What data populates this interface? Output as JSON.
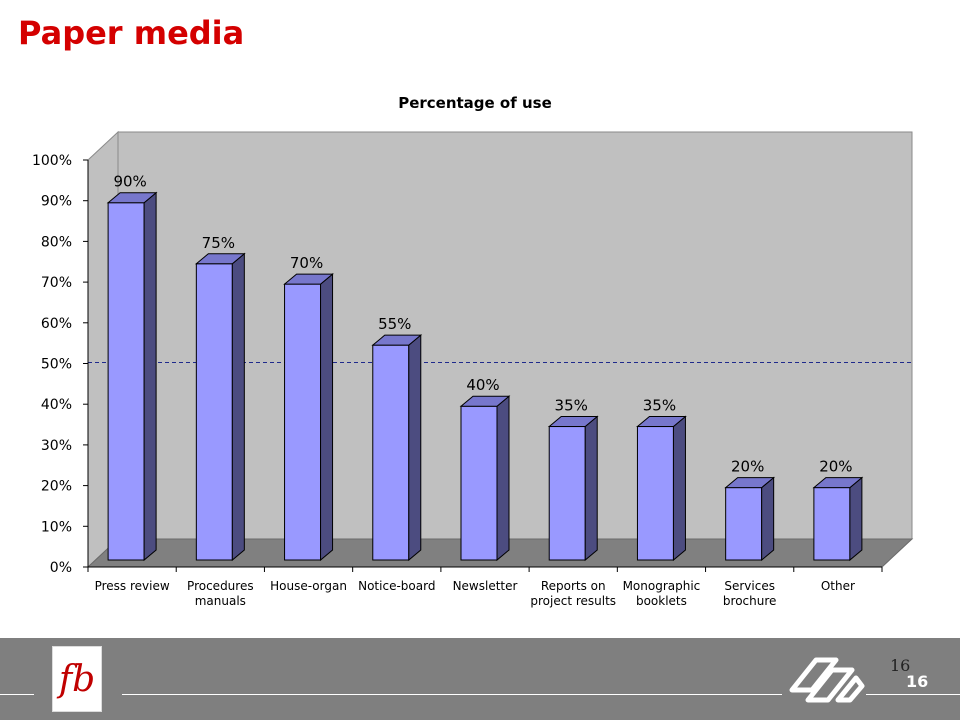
{
  "slide": {
    "title": "Paper media",
    "page_number": "16"
  },
  "footer": {
    "logo_text": "fb",
    "page_serif": "16",
    "page_bold": "16"
  },
  "colors": {
    "title": "#d40000",
    "bar_front": "#9999ff",
    "bar_side": "#4c4c80",
    "bar_top": "#7777cc",
    "plot_back": "#c0c0c0",
    "floor": "#808080",
    "reference_line": "#1f2a8c",
    "footer_bg": "#7f7f7f"
  },
  "chart_data": {
    "type": "bar",
    "title": "Percentage of use",
    "xlabel": "",
    "ylabel": "",
    "ylim": [
      0,
      100
    ],
    "y_ticks": [
      "0%",
      "10%",
      "20%",
      "30%",
      "40%",
      "50%",
      "60%",
      "70%",
      "80%",
      "90%",
      "100%"
    ],
    "categories": [
      [
        "Press review"
      ],
      [
        "Procedures",
        "manuals"
      ],
      [
        "House-organ"
      ],
      [
        "Notice-board"
      ],
      [
        "Newsletter"
      ],
      [
        "Reports on",
        "project results"
      ],
      [
        "Monographic",
        "booklets"
      ],
      [
        "Services",
        "brochure"
      ],
      [
        "Other"
      ]
    ],
    "values": [
      90,
      75,
      70,
      55,
      40,
      35,
      35,
      20,
      20
    ],
    "data_labels": [
      "90%",
      "75%",
      "70%",
      "55%",
      "40%",
      "35%",
      "35%",
      "20%",
      "20%"
    ],
    "reference_line": 50,
    "style": "3d-column",
    "grid": false,
    "legend": "none"
  }
}
